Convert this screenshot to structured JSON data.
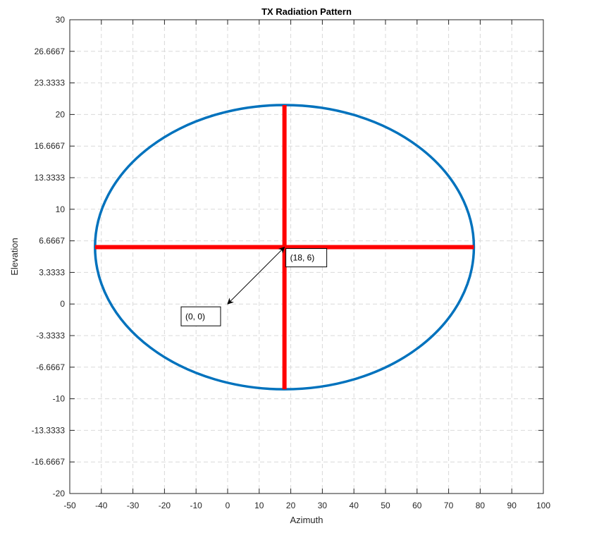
{
  "chart_data": {
    "type": "line",
    "title": "TX Radiation Pattern",
    "xlabel": "Azimuth",
    "ylabel": "Elevation",
    "xlim": [
      -50,
      100
    ],
    "ylim": [
      -20,
      30
    ],
    "grid": true,
    "x_ticks": [
      -50,
      -40,
      -30,
      -20,
      -10,
      0,
      10,
      20,
      30,
      40,
      50,
      60,
      70,
      80,
      90,
      100
    ],
    "x_tick_labels": [
      "-50",
      "-40",
      "-30",
      "-20",
      "-10",
      "0",
      "10",
      "20",
      "30",
      "40",
      "50",
      "60",
      "70",
      "80",
      "90",
      "100"
    ],
    "y_ticks": [
      30,
      26.6667,
      23.3333,
      20,
      16.6667,
      13.3333,
      10,
      6.6667,
      3.3333,
      0,
      -3.3333,
      -6.6667,
      -10,
      -13.3333,
      -16.6667,
      -20
    ],
    "y_tick_labels": [
      "30",
      "26.6667",
      "23.3333",
      "20",
      "16.6667",
      "13.3333",
      "10",
      "6.6667",
      "3.3333",
      "0",
      "-3.3333",
      "-6.6667",
      "-10",
      "-13.3333",
      "-16.6667",
      "-20"
    ],
    "ellipse": {
      "center": [
        18,
        6
      ],
      "x_radius": 60,
      "y_radius": 15,
      "color": "#0072BD"
    },
    "crosshair": {
      "horizontal": {
        "x": [
          -42,
          78
        ],
        "y": [
          6,
          6
        ]
      },
      "vertical": {
        "x": [
          18,
          18
        ],
        "y": [
          -9,
          21
        ]
      },
      "color": "#FF0000"
    },
    "arrow": {
      "from": [
        18,
        6
      ],
      "to": [
        0,
        0
      ]
    },
    "annotations": [
      {
        "text": "(18, 6)",
        "x": 18,
        "y": 6
      },
      {
        "text": "(0, 0)",
        "x": 0,
        "y": 0
      }
    ]
  }
}
